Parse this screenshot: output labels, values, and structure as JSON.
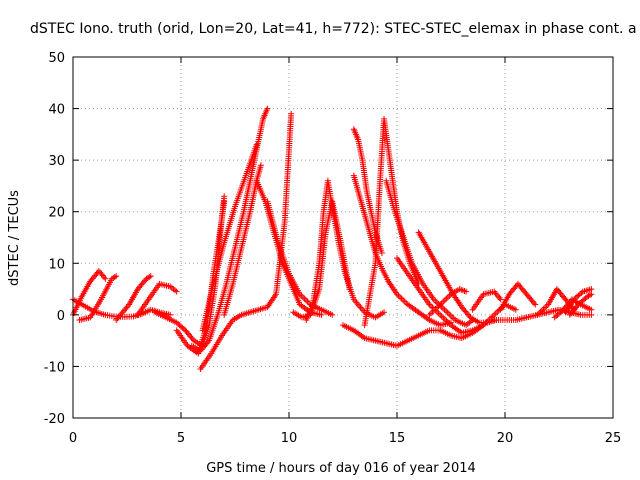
{
  "chart_data": {
    "type": "scatter",
    "title": "dSTEC Iono. truth (orid, Lon=20, Lat=41, h=772): STEC-STEC_elemax in phase cont. a",
    "xlabel": "GPS time / hours of day 016 of year 2014",
    "ylabel": "dSTEC  / TECUs",
    "xlim": [
      0,
      25
    ],
    "ylim": [
      -20,
      50
    ],
    "x_ticks": [
      "0",
      "5",
      "10",
      "15",
      "20",
      "25"
    ],
    "y_ticks": [
      "-20",
      "-10",
      "0",
      "10",
      "20",
      "30",
      "40",
      "50"
    ],
    "grid": true,
    "marker": "+",
    "color": "#ff0000",
    "series": [
      {
        "x": [
          0.0,
          0.5,
          1.0,
          1.5,
          1.9,
          2.3,
          2.8,
          3.2,
          3.6,
          4.0,
          4.5
        ],
        "y": [
          3.0,
          1.8,
          0.6,
          0.0,
          -0.3,
          -0.4,
          -0.3,
          0.2,
          1.0,
          0.5,
          0.0
        ]
      },
      {
        "x": [
          0.0,
          0.4,
          0.8,
          1.2,
          1.5
        ],
        "y": [
          0.0,
          3.5,
          6.5,
          8.5,
          7.0
        ]
      },
      {
        "x": [
          0.3,
          0.8,
          1.3,
          1.8,
          2.0
        ],
        "y": [
          -1.0,
          -0.5,
          3.0,
          7.0,
          7.5
        ]
      },
      {
        "x": [
          2.0,
          2.6,
          3.0,
          3.4,
          3.6
        ],
        "y": [
          -1.0,
          2.0,
          5.0,
          7.0,
          7.5
        ]
      },
      {
        "x": [
          3.0,
          3.5,
          4.0,
          4.5,
          4.8
        ],
        "y": [
          0.0,
          3.0,
          6.0,
          5.5,
          4.5
        ]
      },
      {
        "x": [
          3.8,
          4.3,
          4.8,
          5.2,
          5.6,
          6.0,
          6.3,
          6.6,
          6.8,
          7.0
        ],
        "y": [
          0.5,
          -0.5,
          -1.5,
          -3.0,
          -5.0,
          -6.0,
          -2.0,
          6.0,
          15.0,
          23.0
        ]
      },
      {
        "x": [
          4.8,
          5.3,
          5.8,
          6.2,
          6.5,
          6.8,
          7.0
        ],
        "y": [
          -3.0,
          -6.0,
          -7.5,
          -2.0,
          8.0,
          16.0,
          22.0
        ]
      },
      {
        "x": [
          5.5,
          5.9,
          6.3,
          6.7,
          7.1,
          7.5,
          7.9,
          8.2,
          8.5,
          8.8,
          9.0
        ],
        "y": [
          -6.0,
          -7.0,
          -5.0,
          0.0,
          6.0,
          13.0,
          20.0,
          26.0,
          32.0,
          38.0,
          40.0
        ]
      },
      {
        "x": [
          5.9,
          6.4,
          6.9,
          7.4,
          7.8,
          8.2,
          8.6,
          9.0,
          9.4,
          9.8,
          10.0,
          10.1
        ],
        "y": [
          -10.5,
          -7.5,
          -4.0,
          -1.0,
          0.0,
          0.5,
          1.0,
          1.5,
          4.0,
          18.0,
          32.0,
          39.0
        ]
      },
      {
        "x": [
          6.0,
          6.5,
          7.0,
          7.5,
          8.0,
          8.5
        ],
        "y": [
          -3.0,
          6.0,
          14.0,
          21.0,
          27.0,
          33.0
        ]
      },
      {
        "x": [
          7.0,
          7.4,
          7.8,
          8.2,
          8.5,
          8.7
        ],
        "y": [
          0.0,
          6.0,
          13.0,
          20.0,
          26.0,
          29.0
        ]
      },
      {
        "x": [
          8.5,
          8.9,
          9.3,
          9.7,
          10.1,
          10.5,
          11.0,
          11.5
        ],
        "y": [
          26.0,
          22.0,
          16.0,
          10.0,
          6.0,
          2.0,
          0.5,
          0.0
        ]
      },
      {
        "x": [
          9.0,
          9.5,
          10.0,
          10.5,
          11.0,
          11.5,
          12.0
        ],
        "y": [
          22.0,
          14.0,
          8.0,
          4.0,
          2.0,
          1.0,
          0.0
        ]
      },
      {
        "x": [
          10.2,
          10.6,
          11.0,
          11.4,
          11.7,
          12.0,
          12.4,
          12.8
        ],
        "y": [
          0.5,
          -0.5,
          0.0,
          5.0,
          16.0,
          22.0,
          14.0,
          5.0
        ]
      },
      {
        "x": [
          10.8,
          11.1,
          11.4,
          11.6,
          11.8,
          12.0,
          12.3,
          12.6,
          13.0,
          13.5,
          14.0,
          14.4
        ],
        "y": [
          -1.0,
          2.0,
          10.0,
          20.0,
          26.0,
          21.0,
          14.0,
          8.0,
          3.0,
          0.5,
          -0.5,
          0.5
        ]
      },
      {
        "x": [
          13.0,
          13.2,
          13.4,
          13.6,
          13.8,
          14.0,
          14.3
        ],
        "y": [
          36.0,
          34.0,
          30.0,
          24.0,
          20.0,
          16.0,
          12.0
        ]
      },
      {
        "x": [
          13.0,
          13.2,
          13.4,
          13.6,
          13.8,
          14.0,
          14.3,
          14.6,
          15.0,
          15.5,
          16.0,
          16.5,
          17.0,
          17.5
        ],
        "y": [
          27.0,
          24.0,
          21.0,
          18.0,
          15.0,
          12.0,
          9.0,
          6.5,
          4.0,
          2.0,
          0.5,
          -1.0,
          -2.0,
          -1.5
        ]
      },
      {
        "x": [
          13.5,
          14.0,
          14.2,
          14.4,
          14.6,
          14.8,
          15.0,
          15.3,
          15.6,
          16.0
        ],
        "y": [
          -2.0,
          10.0,
          25.0,
          38.0,
          32.0,
          26.0,
          20.0,
          14.0,
          10.0,
          6.0
        ]
      },
      {
        "x": [
          14.5,
          14.9,
          15.3,
          15.7,
          16.2,
          16.7,
          17.2,
          17.7,
          18.2,
          18.5
        ],
        "y": [
          26.0,
          20.0,
          15.0,
          10.0,
          6.0,
          3.0,
          1.0,
          -1.0,
          -2.0,
          -1.0
        ]
      },
      {
        "x": [
          12.5,
          13.0,
          13.5,
          14.0,
          14.5,
          15.0,
          15.5,
          16.0,
          16.5,
          17.0
        ],
        "y": [
          -2.0,
          -3.0,
          -4.5,
          -5.0,
          -5.5,
          -6.0,
          -5.0,
          -4.0,
          -3.0,
          -3.0
        ]
      },
      {
        "x": [
          15.0,
          15.5,
          16.0,
          16.5,
          17.0,
          17.5,
          18.0,
          18.5,
          19.0
        ],
        "y": [
          11.0,
          8.0,
          5.0,
          2.0,
          0.0,
          -2.0,
          -3.5,
          -3.0,
          -2.0
        ]
      },
      {
        "x": [
          16.0,
          16.4,
          16.8,
          17.2,
          17.6,
          18.0,
          18.4,
          18.8,
          19.2,
          19.6
        ],
        "y": [
          16.0,
          13.0,
          10.0,
          7.0,
          4.0,
          1.5,
          -0.5,
          -1.5,
          -1.5,
          -1.0
        ]
      },
      {
        "x": [
          17.0,
          17.5,
          18.0,
          18.5,
          19.0,
          19.5,
          20.0,
          20.5
        ],
        "y": [
          -3.0,
          -4.0,
          -4.5,
          -3.5,
          -2.0,
          0.0,
          2.0,
          1.0
        ]
      },
      {
        "x": [
          16.5,
          17.0,
          17.5,
          17.9,
          18.2
        ],
        "y": [
          0.0,
          2.0,
          4.0,
          5.0,
          4.5
        ]
      },
      {
        "x": [
          18.5,
          19.0,
          19.5,
          19.8
        ],
        "y": [
          1.0,
          4.0,
          4.5,
          3.0
        ]
      },
      {
        "x": [
          19.5,
          20.0,
          20.5,
          21.0,
          21.5,
          22.0,
          22.5,
          23.0,
          23.5,
          24.0
        ],
        "y": [
          -1.0,
          -1.0,
          -1.0,
          -0.5,
          0.0,
          0.5,
          1.0,
          0.5,
          0.0,
          0.0
        ]
      },
      {
        "x": [
          19.8,
          20.2,
          20.6,
          21.0,
          21.4
        ],
        "y": [
          1.0,
          4.0,
          6.0,
          4.0,
          2.0
        ]
      },
      {
        "x": [
          21.5,
          22.0,
          22.4,
          22.8,
          23.2
        ],
        "y": [
          0.0,
          2.0,
          5.0,
          3.0,
          1.0
        ]
      },
      {
        "x": [
          22.8,
          23.2,
          23.6,
          24.0
        ],
        "y": [
          0.5,
          3.0,
          4.5,
          5.0
        ]
      },
      {
        "x": [
          22.3,
          22.7,
          23.1,
          23.5,
          24.0
        ],
        "y": [
          -0.5,
          1.0,
          3.0,
          2.0,
          1.0
        ]
      },
      {
        "x": [
          23.0,
          23.4,
          23.8,
          24.0
        ],
        "y": [
          0.0,
          2.0,
          3.5,
          4.0
        ]
      }
    ]
  }
}
